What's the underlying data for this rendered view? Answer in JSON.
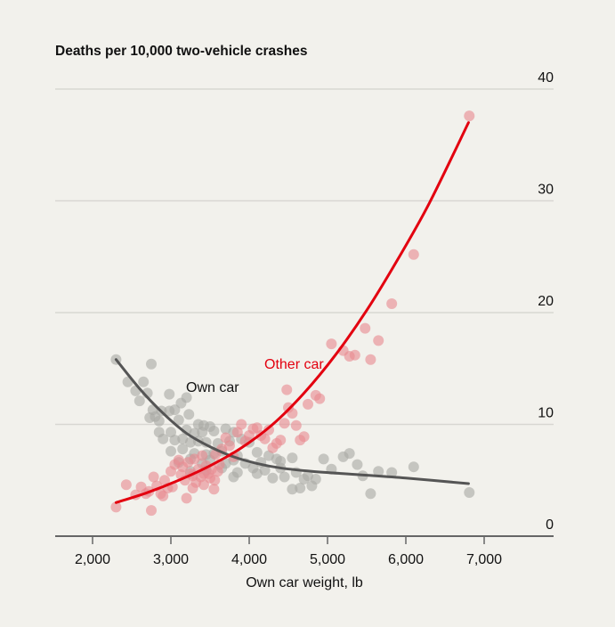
{
  "chart_data": {
    "type": "scatter",
    "title": "Deaths per 10,000 two-vehicle crashes",
    "xlabel": "Own car weight, lb",
    "ylabel": "",
    "xlim": [
      1500,
      7900
    ],
    "ylim": [
      0,
      40
    ],
    "x_ticks": [
      2000,
      3000,
      4000,
      5000,
      6000,
      7000
    ],
    "x_tick_labels": [
      "2,000",
      "3,000",
      "4,000",
      "5,000",
      "6,000",
      "7,000"
    ],
    "y_ticks": [
      0,
      10,
      20,
      30,
      40
    ],
    "y_tick_labels": [
      "0",
      "10",
      "20",
      "30",
      "40"
    ],
    "y_axis_side": "right",
    "grid": true,
    "colors": {
      "background": "#f2f1ec",
      "own_car": "#555555",
      "own_car_points": "#a9a9a5",
      "other_car": "#e3000f",
      "other_car_points": "#e88a91",
      "grid": "#d8d7d2",
      "axis": "#666666"
    },
    "series": [
      {
        "name": "Own car",
        "label": "Own car",
        "points": [
          [
            2300,
            15.8
          ],
          [
            2750,
            15.4
          ],
          [
            2450,
            13.8
          ],
          [
            2650,
            13.8
          ],
          [
            2550,
            13.0
          ],
          [
            2700,
            12.8
          ],
          [
            2980,
            12.7
          ],
          [
            3200,
            12.4
          ],
          [
            2600,
            12.1
          ],
          [
            3130,
            11.9
          ],
          [
            2770,
            11.3
          ],
          [
            2880,
            11.2
          ],
          [
            2980,
            11.2
          ],
          [
            3050,
            11.3
          ],
          [
            3230,
            10.9
          ],
          [
            2730,
            10.6
          ],
          [
            2800,
            10.7
          ],
          [
            2850,
            10.3
          ],
          [
            3100,
            10.4
          ],
          [
            3350,
            10.0
          ],
          [
            3420,
            9.9
          ],
          [
            3500,
            9.8
          ],
          [
            2850,
            9.3
          ],
          [
            3000,
            9.3
          ],
          [
            3200,
            9.5
          ],
          [
            3300,
            9.2
          ],
          [
            3400,
            9.3
          ],
          [
            3550,
            9.4
          ],
          [
            3700,
            9.6
          ],
          [
            3800,
            9.3
          ],
          [
            2900,
            8.7
          ],
          [
            3050,
            8.6
          ],
          [
            3150,
            8.7
          ],
          [
            3250,
            8.4
          ],
          [
            3350,
            8.5
          ],
          [
            3450,
            8.4
          ],
          [
            3600,
            8.3
          ],
          [
            3750,
            8.5
          ],
          [
            3900,
            8.7
          ],
          [
            4000,
            8.4
          ],
          [
            3000,
            7.6
          ],
          [
            3150,
            7.8
          ],
          [
            3300,
            7.4
          ],
          [
            3450,
            7.3
          ],
          [
            3550,
            7.4
          ],
          [
            3650,
            7.6
          ],
          [
            3850,
            7.2
          ],
          [
            4100,
            7.5
          ],
          [
            4250,
            7.2
          ],
          [
            4350,
            6.9
          ],
          [
            3100,
            6.6
          ],
          [
            3250,
            6.9
          ],
          [
            3400,
            6.5
          ],
          [
            3500,
            6.8
          ],
          [
            3700,
            6.5
          ],
          [
            3800,
            6.8
          ],
          [
            3950,
            6.5
          ],
          [
            4150,
            6.6
          ],
          [
            4400,
            6.7
          ],
          [
            4550,
            7.0
          ],
          [
            3250,
            5.8
          ],
          [
            3450,
            5.9
          ],
          [
            3650,
            6.1
          ],
          [
            3850,
            5.7
          ],
          [
            4050,
            6.1
          ],
          [
            4200,
            5.9
          ],
          [
            4400,
            6.1
          ],
          [
            4600,
            5.7
          ],
          [
            4750,
            5.4
          ],
          [
            4950,
            6.9
          ],
          [
            3800,
            5.3
          ],
          [
            4100,
            5.6
          ],
          [
            4300,
            5.2
          ],
          [
            4450,
            5.3
          ],
          [
            4700,
            5.1
          ],
          [
            4850,
            5.1
          ],
          [
            5050,
            6.0
          ],
          [
            5200,
            7.1
          ],
          [
            5280,
            7.4
          ],
          [
            5380,
            6.4
          ],
          [
            4550,
            4.2
          ],
          [
            4650,
            4.3
          ],
          [
            4800,
            4.5
          ],
          [
            5450,
            5.4
          ],
          [
            5650,
            5.8
          ],
          [
            5820,
            5.7
          ],
          [
            6100,
            6.2
          ],
          [
            5550,
            3.8
          ],
          [
            6810,
            3.9
          ]
        ],
        "trend": [
          [
            2300,
            15.8
          ],
          [
            2600,
            13.2
          ],
          [
            2900,
            11.0
          ],
          [
            3200,
            9.2
          ],
          [
            3500,
            8.0
          ],
          [
            3800,
            7.1
          ],
          [
            4100,
            6.5
          ],
          [
            4400,
            6.1
          ],
          [
            4800,
            5.8
          ],
          [
            5400,
            5.5
          ],
          [
            6000,
            5.2
          ],
          [
            6800,
            4.7
          ]
        ]
      },
      {
        "name": "Other car",
        "label": "Other car",
        "points": [
          [
            2300,
            2.6
          ],
          [
            2430,
            4.6
          ],
          [
            2550,
            3.7
          ],
          [
            2620,
            4.4
          ],
          [
            2680,
            3.8
          ],
          [
            2750,
            2.3
          ],
          [
            2780,
            5.3
          ],
          [
            2720,
            4.0
          ],
          [
            2820,
            4.5
          ],
          [
            2870,
            3.8
          ],
          [
            2900,
            3.6
          ],
          [
            2920,
            5.0
          ],
          [
            2960,
            4.3
          ],
          [
            3000,
            5.8
          ],
          [
            3020,
            4.4
          ],
          [
            3050,
            6.4
          ],
          [
            3100,
            6.8
          ],
          [
            3150,
            6.2
          ],
          [
            3180,
            5.0
          ],
          [
            3200,
            3.4
          ],
          [
            3220,
            6.6
          ],
          [
            3250,
            5.6
          ],
          [
            3280,
            5.4
          ],
          [
            3300,
            6.9
          ],
          [
            3320,
            4.8
          ],
          [
            3350,
            6.0
          ],
          [
            3380,
            5.3
          ],
          [
            3400,
            7.2
          ],
          [
            3420,
            4.6
          ],
          [
            3450,
            6.3
          ],
          [
            3480,
            5.6
          ],
          [
            3500,
            5.2
          ],
          [
            3520,
            6.0
          ],
          [
            3550,
            4.2
          ],
          [
            3570,
            7.3
          ],
          [
            3600,
            5.8
          ],
          [
            3620,
            6.4
          ],
          [
            3650,
            7.8
          ],
          [
            3700,
            8.8
          ],
          [
            3750,
            8.1
          ],
          [
            3800,
            7.1
          ],
          [
            3850,
            9.3
          ],
          [
            3900,
            10.0
          ],
          [
            3950,
            8.5
          ],
          [
            4000,
            9.0
          ],
          [
            4050,
            9.6
          ],
          [
            4100,
            9.7
          ],
          [
            4150,
            9.0
          ],
          [
            4200,
            8.7
          ],
          [
            4250,
            9.5
          ],
          [
            4300,
            7.9
          ],
          [
            4350,
            8.3
          ],
          [
            4400,
            8.6
          ],
          [
            4450,
            10.1
          ],
          [
            4500,
            11.5
          ],
          [
            4480,
            13.1
          ],
          [
            4550,
            11.0
          ],
          [
            4600,
            9.9
          ],
          [
            4650,
            8.6
          ],
          [
            4700,
            8.9
          ],
          [
            4750,
            11.8
          ],
          [
            4850,
            12.6
          ],
          [
            4900,
            12.3
          ],
          [
            5050,
            17.2
          ],
          [
            5200,
            16.6
          ],
          [
            5280,
            16.1
          ],
          [
            5350,
            16.2
          ],
          [
            5480,
            18.6
          ],
          [
            5550,
            15.8
          ],
          [
            5650,
            17.5
          ],
          [
            5820,
            20.8
          ],
          [
            6100,
            25.2
          ],
          [
            6810,
            37.6
          ],
          [
            3420,
            5.6
          ],
          [
            3560,
            5.0
          ],
          [
            3280,
            4.3
          ],
          [
            3130,
            5.5
          ]
        ],
        "trend": [
          [
            2300,
            3.0
          ],
          [
            2700,
            3.9
          ],
          [
            3100,
            5.0
          ],
          [
            3500,
            6.3
          ],
          [
            3900,
            7.9
          ],
          [
            4300,
            10.0
          ],
          [
            4700,
            12.8
          ],
          [
            5100,
            16.2
          ],
          [
            5500,
            20.2
          ],
          [
            5900,
            24.8
          ],
          [
            6300,
            29.8
          ],
          [
            6800,
            37.0
          ]
        ]
      }
    ]
  }
}
